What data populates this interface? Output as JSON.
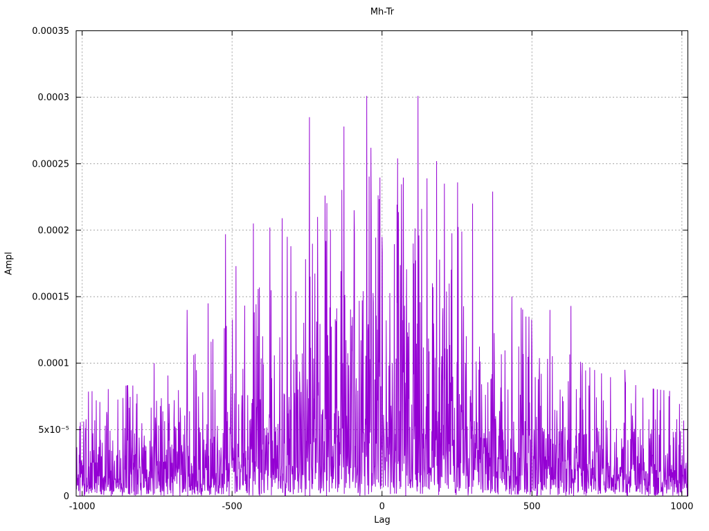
{
  "colors": {
    "background": "#ffffff",
    "border": "#000000",
    "grid": "#a0a0a0",
    "text": "#000000",
    "series": "#9400d3"
  },
  "chart_data": {
    "type": "line",
    "title": "Mh-Tr",
    "xlabel": "Lag",
    "ylabel": "Ampl",
    "xlim": [
      -1020,
      1020
    ],
    "ylim": [
      0,
      0.00035
    ],
    "grid": true,
    "legend": "none",
    "x_ticks": [
      {
        "value": -1000,
        "label": "-1000"
      },
      {
        "value": -500,
        "label": "-500"
      },
      {
        "value": 0,
        "label": "0"
      },
      {
        "value": 500,
        "label": "500"
      },
      {
        "value": 1000,
        "label": "1000"
      }
    ],
    "y_ticks": [
      {
        "value": 0,
        "label": "0"
      },
      {
        "value": 5e-05,
        "label": "5x10⁻⁵"
      },
      {
        "value": 0.0001,
        "label": "0.0001"
      },
      {
        "value": 0.00015,
        "label": "0.00015"
      },
      {
        "value": 0.0002,
        "label": "0.0002"
      },
      {
        "value": 0.00025,
        "label": "0.00025"
      },
      {
        "value": 0.0003,
        "label": "0.0003"
      },
      {
        "value": 0.00035,
        "label": "0.00035"
      }
    ],
    "series": [
      {
        "name": "Mh-Tr",
        "color": "#9400d3",
        "style": "dense-noise-line",
        "lag_step": 1,
        "noise": {
          "distribution": "exponential",
          "seed": 97,
          "base": 2e-05,
          "amp": 4.4e-05,
          "envelope_width": 480,
          "clamp_factor": 3.8
        },
        "peaks": [
          [
            -760,
            0.0001
          ],
          [
            -650,
            0.00014
          ],
          [
            -580,
            0.000145
          ],
          [
            -522,
            0.000197
          ],
          [
            -487,
            0.000173
          ],
          [
            -429,
            0.000205
          ],
          [
            -374,
            0.000202
          ],
          [
            -333,
            0.000209
          ],
          [
            -316,
            0.000195
          ],
          [
            -242,
            0.000285
          ],
          [
            -215,
            0.00021
          ],
          [
            -190,
            0.000226
          ],
          [
            -127,
            0.000278
          ],
          [
            -93,
            0.000215
          ],
          [
            -51,
            0.000301
          ],
          [
            -37,
            0.000262
          ],
          [
            0,
            0.000195
          ],
          [
            52,
            0.000254
          ],
          [
            120,
            0.000301
          ],
          [
            132,
            0.000216
          ],
          [
            150,
            0.000239
          ],
          [
            182,
            0.000252
          ],
          [
            208,
            0.000235
          ],
          [
            252,
            0.000236
          ],
          [
            302,
            0.00022
          ],
          [
            369,
            0.000229
          ],
          [
            480,
            0.000135
          ],
          [
            560,
            0.00014
          ],
          [
            630,
            0.000143
          ],
          [
            810,
            9.5e-05
          ]
        ]
      }
    ]
  }
}
